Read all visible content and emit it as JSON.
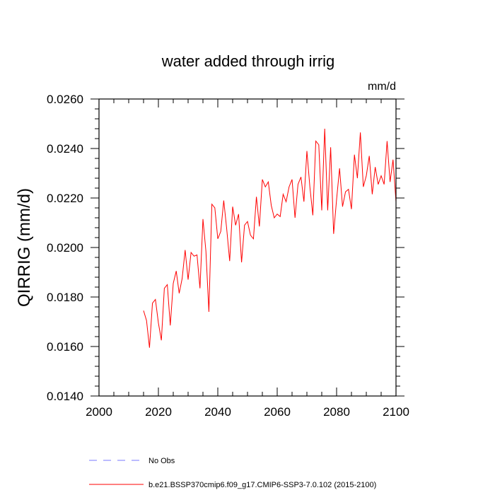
{
  "chart_data": {
    "type": "line",
    "title": "water added through irrig",
    "units_label": "mm/d",
    "ylabel": "QIRRIG  (mm/d)",
    "xlabel": "",
    "xlim": [
      2000,
      2100
    ],
    "ylim": [
      0.014,
      0.026
    ],
    "x_ticks": [
      2000,
      2020,
      2040,
      2060,
      2080,
      2100
    ],
    "x_tick_labels": [
      "2000",
      "2020",
      "2040",
      "2060",
      "2080",
      "2100"
    ],
    "y_ticks": [
      0.014,
      0.016,
      0.018,
      0.02,
      0.022,
      0.024,
      0.026
    ],
    "y_tick_labels": [
      "0.0140",
      "0.0160",
      "0.0180",
      "0.0200",
      "0.0220",
      "0.0240",
      "0.0260"
    ],
    "grid": false,
    "legend_position": "bottom",
    "legend": [
      {
        "label": "No Obs",
        "style": "dashed",
        "color": "#7a7aff"
      },
      {
        "label": "b.e21.BSSP370cmip6.f09_g17.CMIP6-SSP3-7.0.102 (2015-2100)",
        "style": "solid",
        "color": "#ff0000"
      }
    ],
    "series": [
      {
        "color": "#ff0000",
        "x": [
          2015,
          2016,
          2017,
          2018,
          2019,
          2020,
          2021,
          2022,
          2023,
          2024,
          2025,
          2026,
          2027,
          2028,
          2029,
          2030,
          2031,
          2032,
          2033,
          2034,
          2035,
          2036,
          2037,
          2038,
          2039,
          2040,
          2041,
          2042,
          2043,
          2044,
          2045,
          2046,
          2047,
          2048,
          2049,
          2050,
          2051,
          2052,
          2053,
          2054,
          2055,
          2056,
          2057,
          2058,
          2059,
          2060,
          2061,
          2062,
          2063,
          2064,
          2065,
          2066,
          2067,
          2068,
          2069,
          2070,
          2071,
          2072,
          2073,
          2074,
          2075,
          2076,
          2077,
          2078,
          2079,
          2080,
          2081,
          2082,
          2083,
          2084,
          2085,
          2086,
          2087,
          2088,
          2089,
          2090,
          2091,
          2092,
          2093,
          2094,
          2095,
          2096,
          2097,
          2098,
          2099,
          2100
        ],
        "values": [
          0.01745,
          0.01705,
          0.01595,
          0.01775,
          0.0179,
          0.01695,
          0.01625,
          0.01835,
          0.0185,
          0.01685,
          0.01855,
          0.01905,
          0.01815,
          0.01875,
          0.0199,
          0.0187,
          0.0198,
          0.01965,
          0.0197,
          0.01835,
          0.02115,
          0.01985,
          0.0174,
          0.02175,
          0.0216,
          0.02035,
          0.02065,
          0.0219,
          0.02075,
          0.01945,
          0.02165,
          0.0209,
          0.02135,
          0.0194,
          0.0209,
          0.02105,
          0.0205,
          0.02035,
          0.02205,
          0.02085,
          0.02275,
          0.02245,
          0.02265,
          0.0217,
          0.0212,
          0.02135,
          0.02125,
          0.02215,
          0.02185,
          0.02245,
          0.02275,
          0.0212,
          0.02255,
          0.02285,
          0.02185,
          0.0239,
          0.02245,
          0.0213,
          0.0243,
          0.02415,
          0.0215,
          0.0248,
          0.0215,
          0.02405,
          0.02055,
          0.02195,
          0.0232,
          0.02165,
          0.02225,
          0.02235,
          0.02155,
          0.02375,
          0.0228,
          0.02465,
          0.02245,
          0.0229,
          0.0237,
          0.02215,
          0.02325,
          0.02255,
          0.0229,
          0.02255,
          0.0243,
          0.02265,
          0.02355,
          0.02185
        ]
      }
    ]
  }
}
